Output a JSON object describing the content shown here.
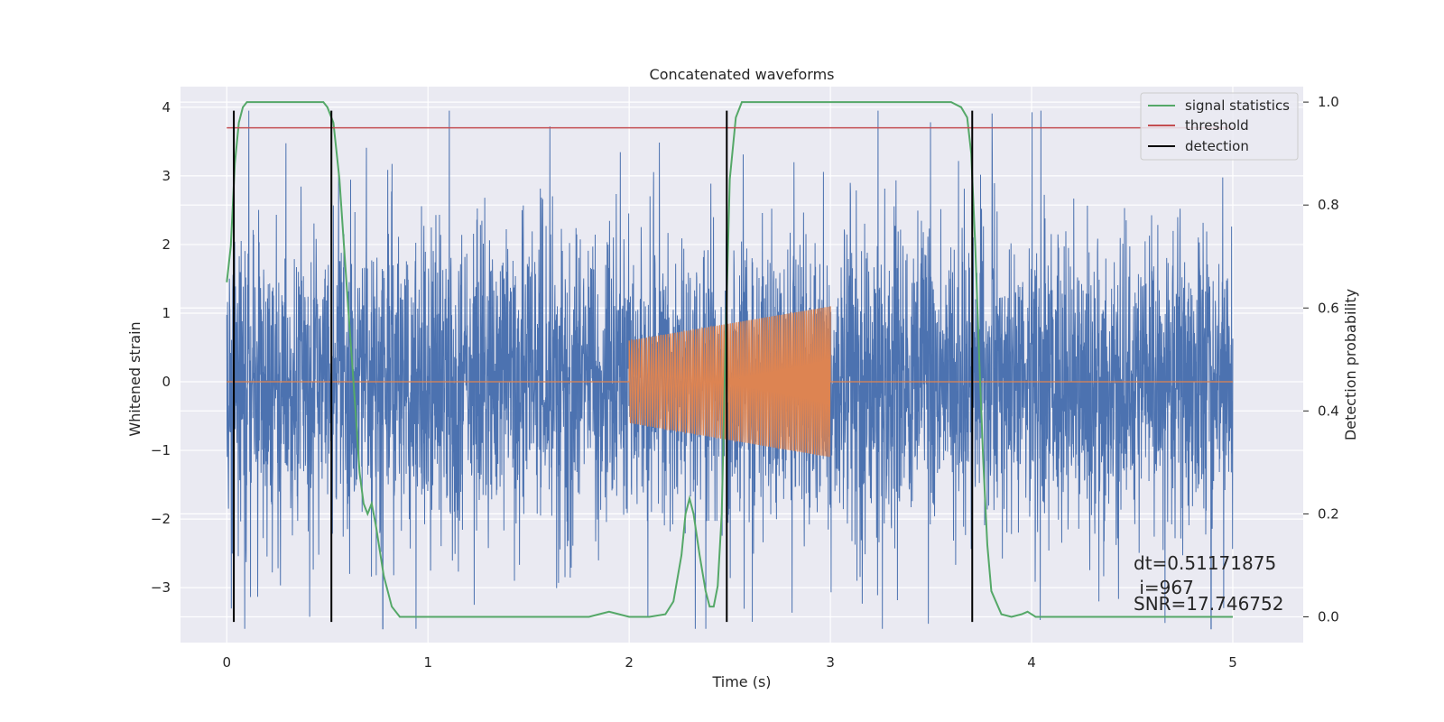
{
  "chart_data": {
    "type": "line",
    "title": "Concatenated waveforms",
    "xlabel": "Time (s)",
    "ylabel": "Whitened strain",
    "y2label": "Detection probability",
    "xlim": [
      -0.23,
      5.35
    ],
    "ylim": [
      -3.8,
      4.3
    ],
    "y2lim": [
      -0.05,
      1.03
    ],
    "xticks": [
      0,
      1,
      2,
      3,
      4,
      5
    ],
    "xtick_labels": [
      "0",
      "1",
      "2",
      "3",
      "4",
      "5"
    ],
    "yticks": [
      -3,
      -2,
      -1,
      0,
      1,
      2,
      3,
      4
    ],
    "ytick_labels": [
      "−3",
      "−2",
      "−1",
      "0",
      "1",
      "2",
      "3",
      "4"
    ],
    "y2ticks": [
      0.0,
      0.2,
      0.4,
      0.6,
      0.8,
      1.0
    ],
    "y2tick_labels": [
      "0.0",
      "0.2",
      "0.4",
      "0.6",
      "0.8",
      "1.0"
    ],
    "grid": true,
    "legend_placement": "top-right",
    "colors": {
      "background": "#eaeaf2",
      "grid": "#ffffff",
      "noisy_strain": "#4c72b0",
      "injected_waveform": "#dd8452",
      "signal_statistics": "#55a868",
      "threshold": "#c44e52",
      "detection": "#000000"
    },
    "series": [
      {
        "name": "signal statistics",
        "axis": "right",
        "x": [
          0.0,
          0.02,
          0.04,
          0.06,
          0.08,
          0.1,
          0.2,
          0.3,
          0.4,
          0.48,
          0.5,
          0.53,
          0.56,
          0.6,
          0.64,
          0.66,
          0.68,
          0.7,
          0.72,
          0.74,
          0.78,
          0.82,
          0.86,
          1.0,
          1.5,
          1.8,
          1.85,
          1.9,
          1.95,
          2.0,
          2.1,
          2.18,
          2.22,
          2.26,
          2.28,
          2.3,
          2.32,
          2.35,
          2.38,
          2.4,
          2.42,
          2.44,
          2.46,
          2.48,
          2.5,
          2.53,
          2.56,
          2.6,
          2.8,
          3.0,
          3.2,
          3.4,
          3.6,
          3.65,
          3.68,
          3.7,
          3.72,
          3.74,
          3.76,
          3.78,
          3.8,
          3.85,
          3.9,
          3.95,
          3.98,
          4.02,
          4.1,
          4.5,
          5.0
        ],
        "values": [
          0.65,
          0.72,
          0.88,
          0.96,
          0.99,
          1.0,
          1.0,
          1.0,
          1.0,
          1.0,
          0.99,
          0.96,
          0.85,
          0.62,
          0.4,
          0.28,
          0.22,
          0.2,
          0.22,
          0.18,
          0.08,
          0.02,
          0.0,
          0.0,
          0.0,
          0.0,
          0.005,
          0.01,
          0.005,
          0.0,
          0.0,
          0.005,
          0.03,
          0.12,
          0.2,
          0.23,
          0.2,
          0.12,
          0.05,
          0.02,
          0.02,
          0.06,
          0.2,
          0.55,
          0.85,
          0.97,
          1.0,
          1.0,
          1.0,
          1.0,
          1.0,
          1.0,
          1.0,
          0.99,
          0.97,
          0.9,
          0.72,
          0.5,
          0.3,
          0.14,
          0.05,
          0.005,
          0.0,
          0.005,
          0.01,
          0.0,
          0.0,
          0.0,
          0.0
        ]
      },
      {
        "name": "threshold",
        "axis": "right",
        "x": [
          0.0,
          5.0
        ],
        "values": [
          0.95,
          0.95
        ]
      },
      {
        "name": "detection",
        "axis": "left",
        "type": "vlines",
        "x": [
          0.035,
          0.52,
          2.485,
          3.705
        ],
        "ymin": -3.5,
        "ymax": 3.95
      },
      {
        "axis": "left",
        "type": "noise",
        "xrange": [
          0.0,
          5.0
        ],
        "amplitude_range": [
          -3.6,
          3.95
        ]
      },
      {
        "axis": "left",
        "type": "chirp",
        "xrange": [
          2.0,
          3.0
        ],
        "amplitude_start": 0.6,
        "amplitude_end": 1.1
      }
    ],
    "annotations": [
      "dt=0.51171875",
      " i=967",
      "SNR=17.746752"
    ]
  }
}
